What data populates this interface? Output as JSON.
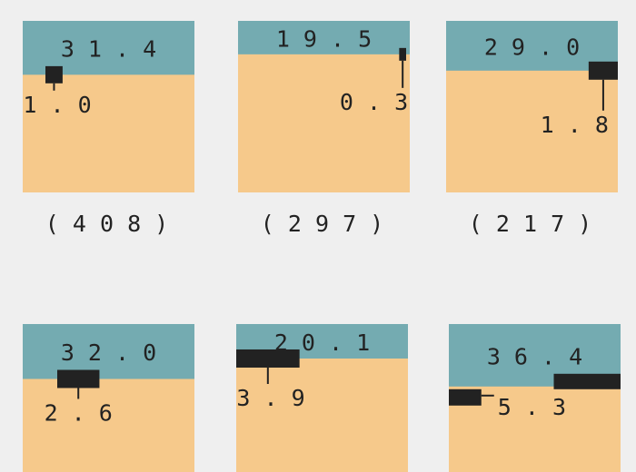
{
  "colors": {
    "top": "#74abb1",
    "bottom": "#f6c98b",
    "mark": "#222222",
    "background": "#efefef"
  },
  "chart_data": {
    "type": "waffle-squares",
    "panels": [
      {
        "top_pct": 31.4,
        "mark_pct": 1.0,
        "label": "(408)"
      },
      {
        "top_pct": 19.5,
        "mark_pct": 0.3,
        "label": "(297)"
      },
      {
        "top_pct": 29.0,
        "mark_pct": 1.8,
        "label": "(217)"
      },
      {
        "top_pct": 32.0,
        "mark_pct": 2.6,
        "label": ""
      },
      {
        "top_pct": 20.1,
        "mark_pct": 3.9,
        "label": ""
      },
      {
        "top_pct": 36.4,
        "mark_pct": 5.3,
        "label": ""
      }
    ]
  }
}
